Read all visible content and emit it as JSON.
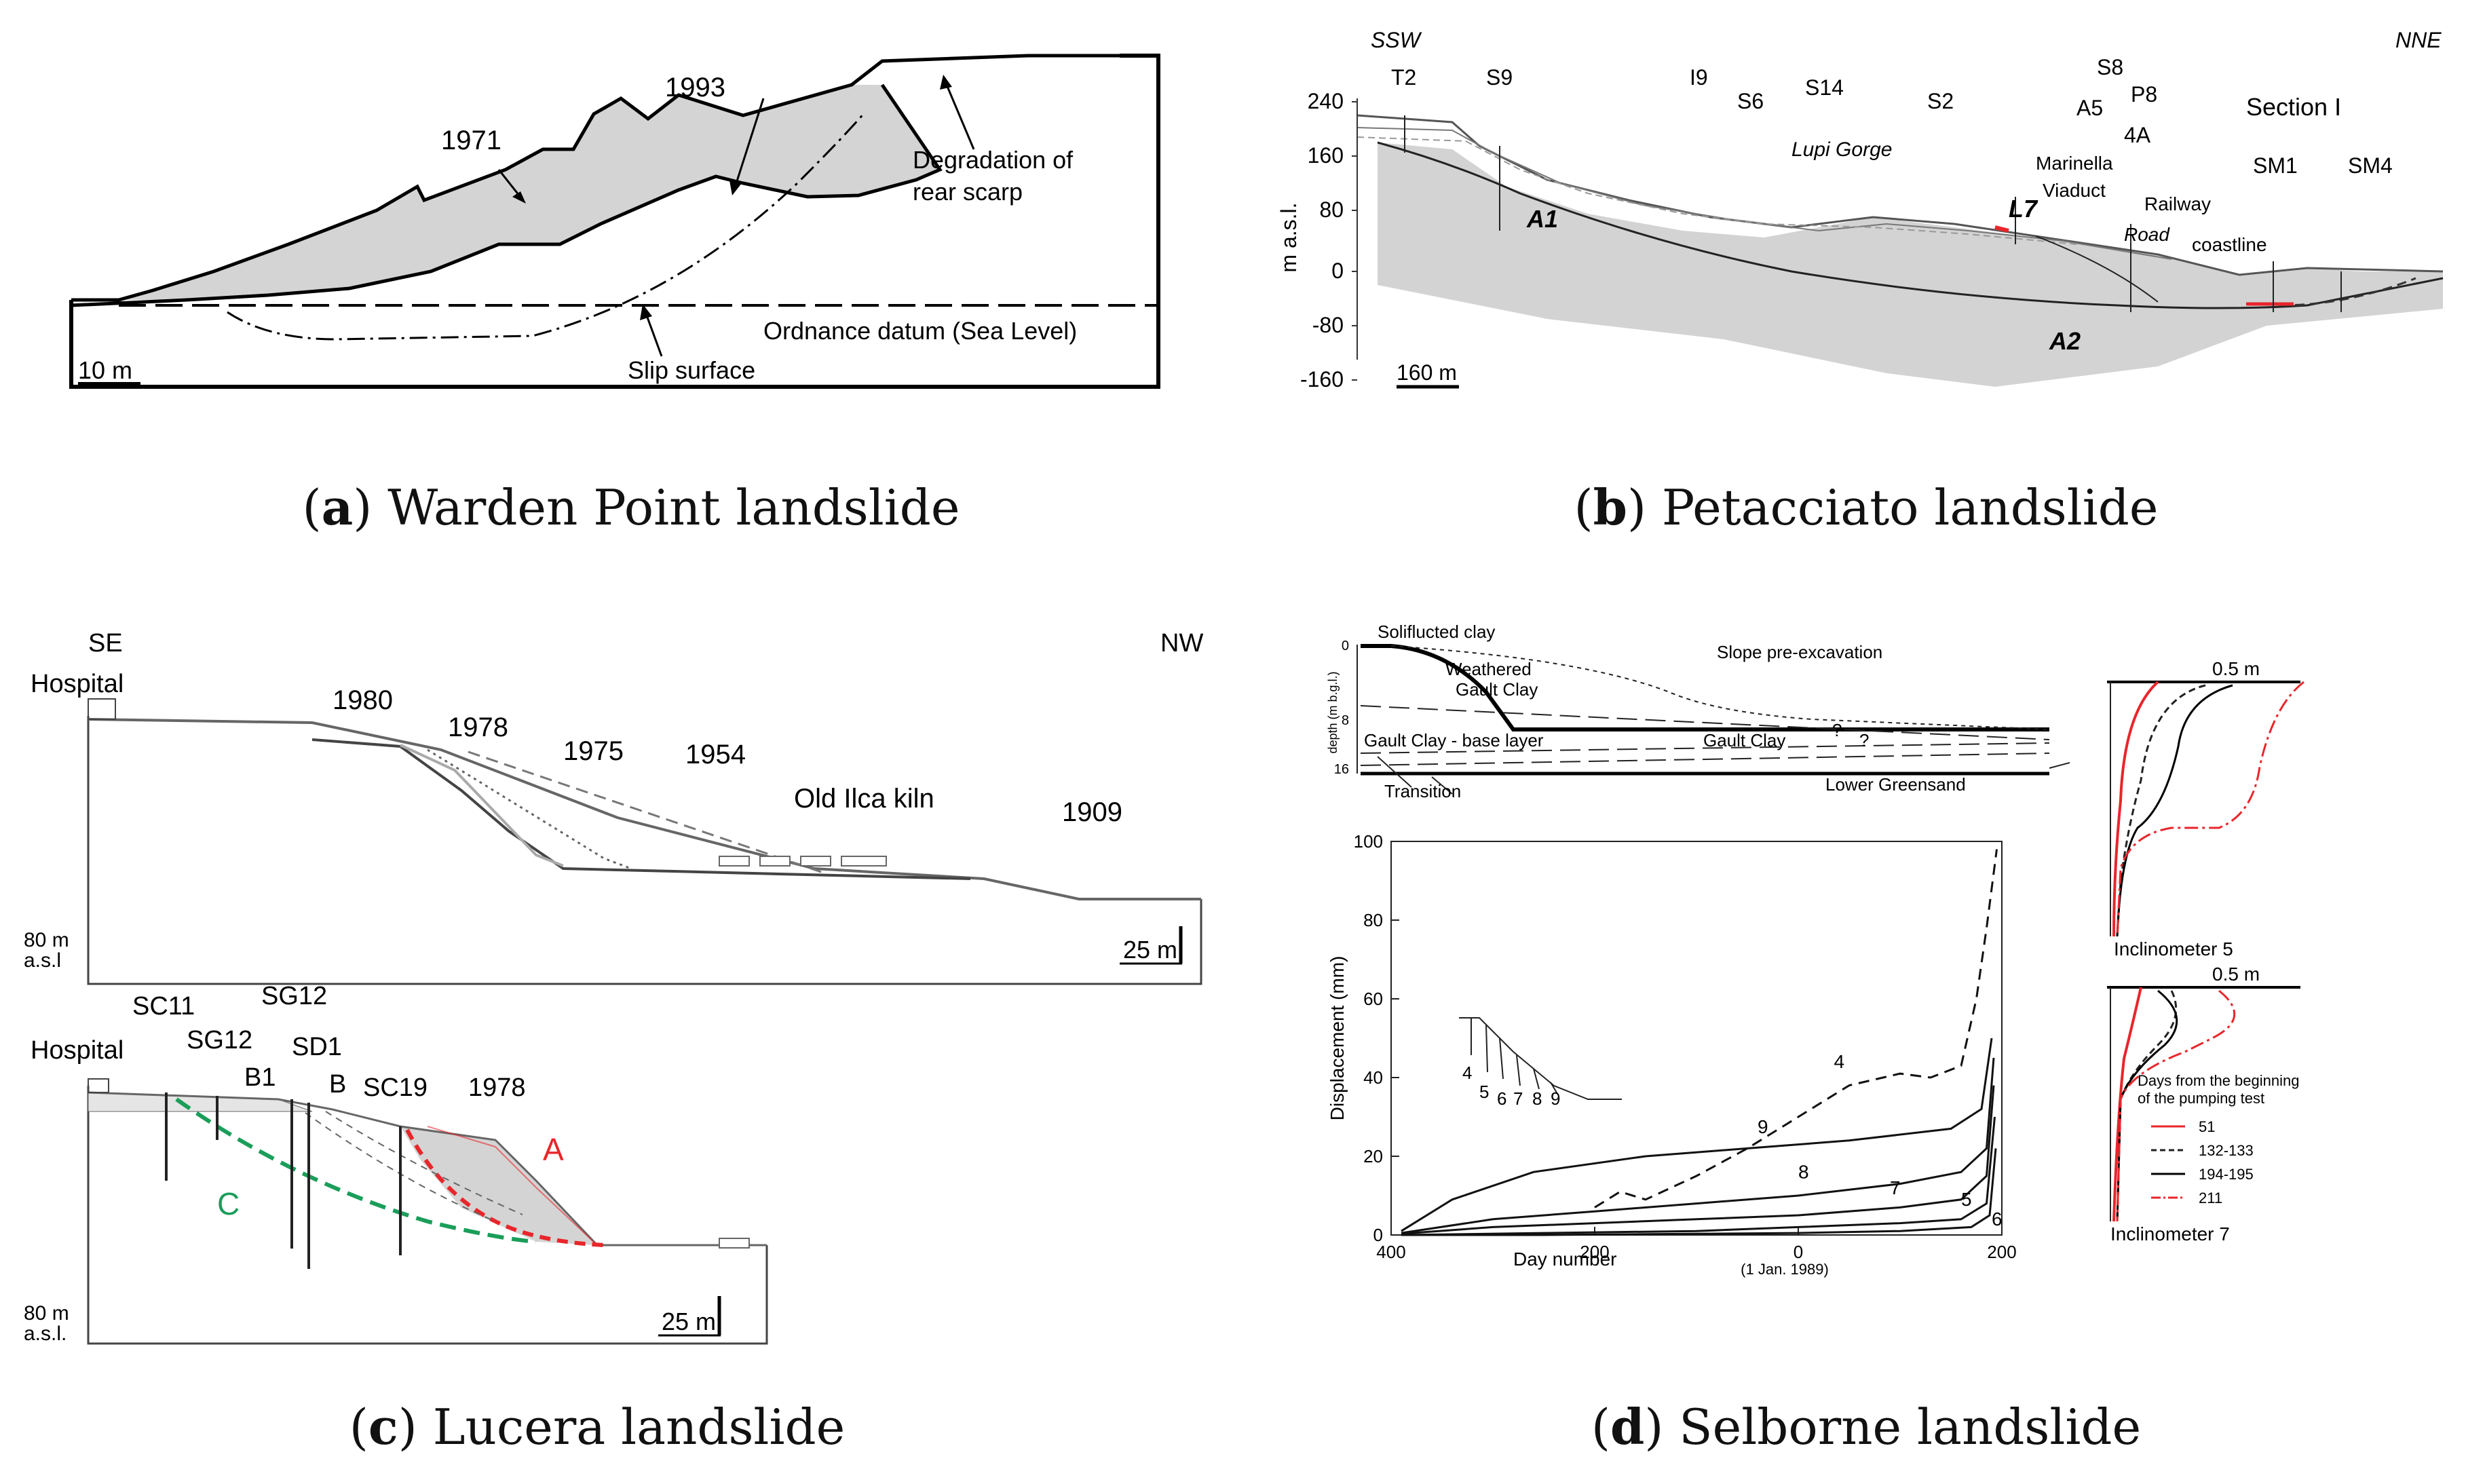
{
  "panel_a": {
    "labels": {
      "y1971": "1971",
      "y1993": "1993",
      "degradation_1": "Degradation of",
      "degradation_2": "rear scarp",
      "datum": "Ordnance datum (Sea Level)",
      "slip": "Slip surface",
      "scale": "10 m"
    },
    "caption": {
      "letter": "a",
      "title": " Warden Point landslide"
    }
  },
  "panel_b": {
    "labels": {
      "ssw": "SSW",
      "nne": "NNE",
      "section": "Section I",
      "boreholes": [
        "T2",
        "S9",
        "I9",
        "S6",
        "S14",
        "S2",
        "S8",
        "P8",
        "A5",
        "4A",
        "SM1",
        "SM4"
      ],
      "yticks": [
        "240",
        "160",
        "80",
        "0",
        "-80",
        "-160"
      ],
      "yaxis": "m a.s.l.",
      "lupi": "Lupi Gorge",
      "marinella": "Marinella",
      "viaduct": "Viaduct",
      "railway": "Railway",
      "road": "Road",
      "coastline": "coastline",
      "a1": "A1",
      "a2": "A2",
      "l7": "L7",
      "scale": "160 m"
    },
    "caption": {
      "letter": "b",
      "title": " Petacciato landslide"
    }
  },
  "panel_c": {
    "labels": {
      "se": "SE",
      "nw": "NW",
      "hospital_top": "Hospital",
      "y1980": "1980",
      "y1978": "1978",
      "y1975": "1975",
      "y1954": "1954",
      "y1909": "1909",
      "kiln": "Old Ilca kiln",
      "elev_top": "80 m",
      "asl_top": "a.s.l",
      "scale_top": "25 m",
      "hospital_bot": "Hospital",
      "sc11": "SC11",
      "sg12a": "SG12",
      "sg12b": "SG12",
      "sd1": "SD1",
      "b1": "B1",
      "b": "B",
      "sc19": "SC19",
      "y1978b": "1978",
      "a": "A",
      "c": "C",
      "elev_bot": "80 m",
      "asl_bot": "a.s.l.",
      "scale_bot": "25 m"
    },
    "colors": {
      "red": "#e8262b",
      "green": "#1a9e5a"
    },
    "caption": {
      "letter": "c",
      "title": " Lucera landslide"
    }
  },
  "panel_d": {
    "profile": {
      "soliflucted": "Soliflucted clay",
      "slope": "Slope pre-excavation",
      "weathered_1": "Weathered",
      "weathered_2": "Gault Clay",
      "gault": "Gault Clay",
      "q1": "?",
      "q2": "?",
      "base": "Gault Clay - base layer",
      "transition": "Transition",
      "greensand": "Lower Greensand",
      "depth_label": "depth (m b.g.l.)",
      "depth_ticks": [
        "0",
        "8",
        "16"
      ]
    },
    "inclinometers": {
      "scale_top": "0.5 m",
      "scale_bottom": "0.5 m",
      "inc5": "Inclinometer 5",
      "inc7": "Inclinometer 7",
      "legend_title_1": "Days from the beginning",
      "legend_title_2": "of the pumping test",
      "legend": [
        "51",
        "132-133",
        "194-195",
        "211"
      ]
    },
    "caption": {
      "letter": "d",
      "title": " Selborne landslide"
    }
  },
  "chart_data": {
    "type": "line",
    "title": "",
    "xlabel": "Day number",
    "xnote": "(1 Jan. 1989)",
    "ylabel": "Displacement (mm)",
    "xlim": [
      -400,
      200
    ],
    "ylim": [
      0,
      100
    ],
    "xtick_labels": [
      "400",
      "200",
      "0",
      "200"
    ],
    "xtick_values": [
      -400,
      -200,
      0,
      200
    ],
    "ytick_values": [
      0,
      20,
      40,
      60,
      80,
      100
    ],
    "series": [
      {
        "name": "9",
        "style": "solid",
        "x": [
          -390,
          -340,
          -260,
          -150,
          -50,
          50,
          150,
          180,
          190
        ],
        "y": [
          1,
          9,
          16,
          20,
          22,
          24,
          27,
          32,
          50
        ]
      },
      {
        "name": "8",
        "style": "solid",
        "x": [
          -390,
          -300,
          -200,
          -100,
          0,
          100,
          160,
          185,
          192
        ],
        "y": [
          0.5,
          4,
          6,
          8,
          10,
          13,
          16,
          22,
          45
        ]
      },
      {
        "name": "7",
        "style": "solid",
        "x": [
          -390,
          -300,
          -200,
          -100,
          0,
          100,
          160,
          185,
          192
        ],
        "y": [
          0.3,
          2,
          3,
          4,
          5,
          7,
          9,
          15,
          38
        ]
      },
      {
        "name": "5",
        "style": "solid",
        "x": [
          -390,
          -250,
          -100,
          0,
          100,
          160,
          185,
          193
        ],
        "y": [
          0,
          0.5,
          1,
          2,
          3,
          4,
          8,
          30
        ]
      },
      {
        "name": "6",
        "style": "solid",
        "x": [
          -390,
          -250,
          -100,
          0,
          100,
          170,
          188,
          194
        ],
        "y": [
          0,
          0,
          0.3,
          0.5,
          1,
          2,
          5,
          22
        ]
      },
      {
        "name": "4",
        "style": "dashed",
        "x": [
          -200,
          -175,
          -150,
          -100,
          -50,
          0,
          50,
          100,
          130,
          160,
          175,
          185,
          195
        ],
        "y": [
          7,
          11,
          9,
          15,
          22,
          30,
          38,
          41,
          40,
          43,
          60,
          78,
          98
        ]
      }
    ],
    "inset_labels": [
      "4",
      "5",
      "6",
      "7",
      "8",
      "9"
    ]
  }
}
